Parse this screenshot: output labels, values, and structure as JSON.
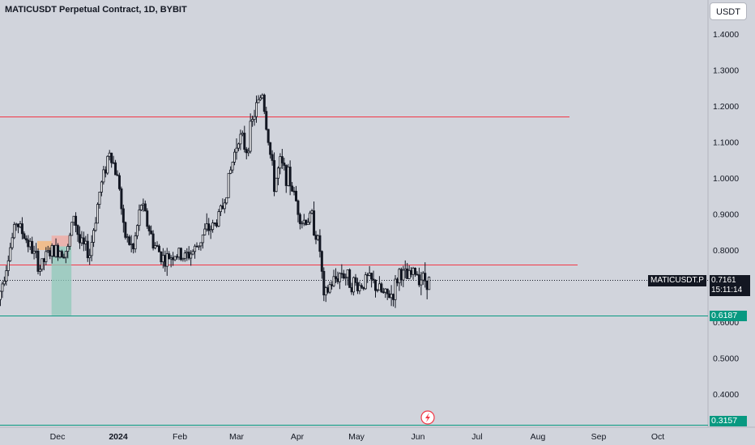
{
  "header": {
    "title": "MATICUSDT Perpetual Contract, 1D, BYBIT",
    "currency_button": "USDT"
  },
  "badges": {
    "symbol_label": "MATICUSDT.P",
    "last_price": "0.7161",
    "countdown": "15:11:14",
    "support_level": "0.6187",
    "low_level": "0.3157"
  },
  "colors": {
    "resistance": "#f23645",
    "support": "#089981",
    "candle": "#131722",
    "background": "#d1d4dc"
  },
  "chart_data": {
    "type": "candlestick",
    "y_axis": {
      "position": "right",
      "ticks": [
        "1.4000",
        "1.3000",
        "1.2000",
        "1.1000",
        "1.0000",
        "0.9000",
        "0.8000",
        "0.6000",
        "0.5000",
        "0.4000"
      ],
      "range": [
        0.3,
        1.44
      ]
    },
    "x_axis": {
      "ticks": [
        "Dec",
        "2024",
        "Feb",
        "Mar",
        "Apr",
        "May",
        "Jun",
        "Jul",
        "Aug",
        "Sep",
        "Oct"
      ]
    },
    "horizontal_lines": [
      {
        "price": 1.17,
        "color": "#f23645",
        "style": "solid"
      },
      {
        "price": 0.76,
        "color": "#f23645",
        "style": "solid"
      },
      {
        "price": 0.6187,
        "color": "#089981",
        "style": "solid"
      },
      {
        "price": 0.3157,
        "color": "#089981",
        "style": "solid"
      },
      {
        "price": 0.7161,
        "color": "#131722",
        "style": "dotted"
      }
    ],
    "close_path": [
      [
        "2023-11-01",
        0.66
      ],
      [
        "2023-11-05",
        0.76
      ],
      [
        "2023-11-10",
        0.88
      ],
      [
        "2023-11-14",
        0.84
      ],
      [
        "2023-11-18",
        0.8
      ],
      [
        "2023-11-22",
        0.75
      ],
      [
        "2023-11-26",
        0.79
      ],
      [
        "2023-12-01",
        0.8
      ],
      [
        "2023-12-06",
        0.8
      ],
      [
        "2023-12-09",
        0.9
      ],
      [
        "2023-12-12",
        0.82
      ],
      [
        "2023-12-17",
        0.79
      ],
      [
        "2023-12-22",
        0.96
      ],
      [
        "2023-12-27",
        1.08
      ],
      [
        "2024-01-01",
        0.98
      ],
      [
        "2024-01-03",
        0.85
      ],
      [
        "2024-01-08",
        0.8
      ],
      [
        "2024-01-12",
        0.93
      ],
      [
        "2024-01-18",
        0.82
      ],
      [
        "2024-01-24",
        0.77
      ],
      [
        "2024-01-28",
        0.79
      ],
      [
        "2024-02-03",
        0.78
      ],
      [
        "2024-02-08",
        0.8
      ],
      [
        "2024-02-13",
        0.85
      ],
      [
        "2024-02-18",
        0.87
      ],
      [
        "2024-02-22",
        0.92
      ],
      [
        "2024-02-26",
        1.02
      ],
      [
        "2024-03-01",
        1.12
      ],
      [
        "2024-03-05",
        1.08
      ],
      [
        "2024-03-09",
        1.18
      ],
      [
        "2024-03-13",
        1.24
      ],
      [
        "2024-03-15",
        1.15
      ],
      [
        "2024-03-19",
        0.98
      ],
      [
        "2024-03-22",
        1.04
      ],
      [
        "2024-03-27",
        0.99
      ],
      [
        "2024-04-02",
        0.88
      ],
      [
        "2024-04-07",
        0.89
      ],
      [
        "2024-04-11",
        0.8
      ],
      [
        "2024-04-13",
        0.66
      ],
      [
        "2024-04-16",
        0.7
      ],
      [
        "2024-04-19",
        0.72
      ],
      [
        "2024-04-22",
        0.74
      ],
      [
        "2024-04-27",
        0.71
      ],
      [
        "2024-05-01",
        0.7
      ],
      [
        "2024-05-05",
        0.72
      ],
      [
        "2024-05-09",
        0.7
      ],
      [
        "2024-05-14",
        0.67
      ],
      [
        "2024-05-18",
        0.68
      ],
      [
        "2024-05-21",
        0.74
      ],
      [
        "2024-05-25",
        0.72
      ],
      [
        "2024-05-29",
        0.74
      ],
      [
        "2024-06-02",
        0.72
      ],
      [
        "2024-06-05",
        0.7161
      ]
    ],
    "annotations": [
      {
        "type": "position",
        "entry": 0.81,
        "stop": 0.84,
        "target": 0.6187,
        "start": "2023-11-28",
        "end": "2023-12-08"
      }
    ]
  }
}
